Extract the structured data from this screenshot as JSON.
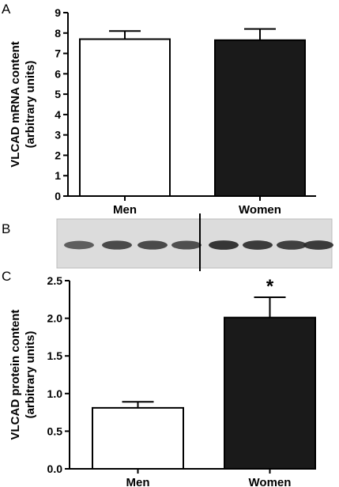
{
  "panels": {
    "a": "A",
    "b": "B",
    "c": "C"
  },
  "chart_data": [
    {
      "type": "bar",
      "categories": [
        "Men",
        "Women"
      ],
      "values": [
        7.7,
        7.65
      ],
      "errors": [
        0.4,
        0.55
      ],
      "ylabel": "VLCAD mRNA content",
      "ylabel2": "(arbitrary units)",
      "ylim": [
        0,
        9
      ],
      "yticks": [
        "0",
        "1",
        "2",
        "3",
        "4",
        "5",
        "6",
        "7",
        "8",
        "9"
      ],
      "bar_colors": [
        "#ffffff",
        "#1a1a1a"
      ],
      "annotations": [
        "",
        ""
      ]
    },
    {
      "type": "bar",
      "categories": [
        "Men",
        "Women"
      ],
      "values": [
        0.81,
        2.01
      ],
      "errors": [
        0.08,
        0.27
      ],
      "ylabel": "VLCAD protein content",
      "ylabel2": "(arbitrary units)",
      "ylim": [
        0,
        2.5
      ],
      "yticks": [
        "0.0",
        "0.5",
        "1.0",
        "1.5",
        "2.0",
        "2.5"
      ],
      "bar_colors": [
        "#ffffff",
        "#1a1a1a"
      ],
      "annotations": [
        "",
        "*"
      ]
    }
  ],
  "blot": {
    "band_intensity": [
      0.55,
      0.75,
      0.75,
      0.7,
      0.95,
      0.9,
      0.85,
      0.9
    ],
    "divider_after_lane": 4
  }
}
